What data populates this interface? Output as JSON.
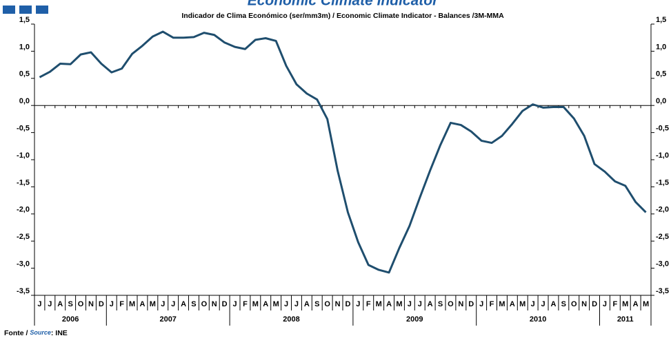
{
  "chart_data": {
    "type": "line",
    "title": "Economic Climate Indicator",
    "subtitle": "Indicador de Clima Económico (ser/mm3m) / Economic Climate Indicator - Balances /3M-MMA",
    "categories": [
      "J",
      "J",
      "A",
      "S",
      "O",
      "N",
      "D",
      "J",
      "F",
      "M",
      "A",
      "M",
      "J",
      "J",
      "A",
      "S",
      "O",
      "N",
      "D",
      "J",
      "F",
      "M",
      "A",
      "M",
      "J",
      "J",
      "A",
      "S",
      "O",
      "N",
      "D",
      "J",
      "F",
      "M",
      "A",
      "M",
      "J",
      "J",
      "A",
      "S",
      "O",
      "N",
      "D",
      "J",
      "F",
      "M",
      "A",
      "M",
      "J",
      "J",
      "A",
      "S",
      "O",
      "N",
      "D",
      "J",
      "F",
      "M",
      "A",
      "M"
    ],
    "x_groups": [
      {
        "label": "2006",
        "size": 7
      },
      {
        "label": "2007",
        "size": 12
      },
      {
        "label": "2008",
        "size": 12
      },
      {
        "label": "2009",
        "size": 12
      },
      {
        "label": "2010",
        "size": 12
      },
      {
        "label": "2011",
        "size": 5
      }
    ],
    "series": [
      {
        "name": "Economic Climate Indicator",
        "color": "#1f4e6e",
        "values": [
          0.52,
          0.62,
          0.77,
          0.76,
          0.94,
          0.98,
          0.77,
          0.61,
          0.68,
          0.95,
          1.1,
          1.27,
          1.36,
          1.25,
          1.25,
          1.26,
          1.34,
          1.3,
          1.16,
          1.08,
          1.04,
          1.21,
          1.24,
          1.19,
          0.73,
          0.39,
          0.22,
          0.11,
          -0.25,
          -1.2,
          -1.97,
          -2.52,
          -2.94,
          -3.03,
          -3.08,
          -2.63,
          -2.22,
          -1.7,
          -1.2,
          -0.73,
          -0.32,
          -0.36,
          -0.48,
          -0.65,
          -0.69,
          -0.56,
          -0.34,
          -0.1,
          0.02,
          -0.04,
          -0.03,
          -0.03,
          -0.24,
          -0.56,
          -1.08,
          -1.22,
          -1.4,
          -1.48,
          -1.78,
          -1.97
        ]
      }
    ],
    "ylim": [
      -3.5,
      1.5
    ],
    "yticks": [
      {
        "value": 1.5,
        "label": "1,5"
      },
      {
        "value": 1.0,
        "label": "1,0"
      },
      {
        "value": 0.5,
        "label": "0,5"
      },
      {
        "value": 0.0,
        "label": "0,0"
      },
      {
        "value": -0.5,
        "label": "-0,5"
      },
      {
        "value": -1.0,
        "label": "-1,0"
      },
      {
        "value": -1.5,
        "label": "-1,5"
      },
      {
        "value": -2.0,
        "label": "-2,0"
      },
      {
        "value": -2.5,
        "label": "-2,5"
      },
      {
        "value": -3.0,
        "label": "-3,0"
      },
      {
        "value": -3.5,
        "label": "-3,5"
      }
    ],
    "source_prefix": "Fonte /",
    "source_word": "Source",
    "source_suffix": ": INE"
  }
}
